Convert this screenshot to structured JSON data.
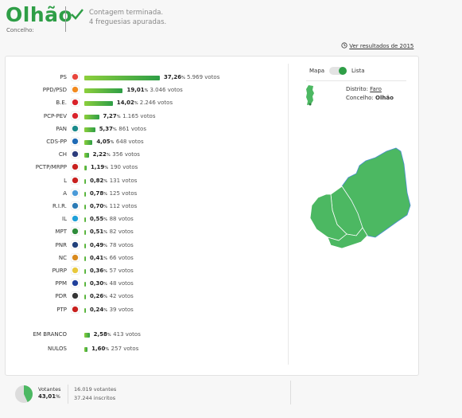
{
  "header": {
    "title": "Olhão",
    "subtitle": "Concelho:",
    "status_line1": "Contagem terminada.",
    "status_line2": "4 freguesias apuradas.",
    "history_link": "Ver resultados de 2015",
    "brand_color": "#2e9e46"
  },
  "map_panel": {
    "toggle_left": "Mapa",
    "toggle_right": "Lista",
    "distrito_label": "Distrito:",
    "distrito_value": "Faro",
    "concelho_label": "Concelho:",
    "concelho_value": "Olhão",
    "map_color": "#4cb862"
  },
  "parties": [
    {
      "name": "PS",
      "pct": "37,26",
      "votes": "5.969 votos",
      "share": 37.26,
      "logo": "ps-logo",
      "color": "#e8453c"
    },
    {
      "name": "PPD/PSD",
      "pct": "19,01",
      "votes": "3.046 votos",
      "share": 19.01,
      "logo": "psd-logo",
      "color": "#f28a1e"
    },
    {
      "name": "B.E.",
      "pct": "14,02",
      "votes": "2.246 votos",
      "share": 14.02,
      "logo": "be-logo",
      "color": "#d9222a"
    },
    {
      "name": "PCP-PEV",
      "pct": "7,27",
      "votes": "1.165 votos",
      "share": 7.27,
      "logo": "pcp-pev-logo",
      "color": "#d9222a"
    },
    {
      "name": "PAN",
      "pct": "5,37",
      "votes": "861 votos",
      "share": 5.37,
      "logo": "pan-logo",
      "color": "#1a8a8a"
    },
    {
      "name": "CDS-PP",
      "pct": "4,05",
      "votes": "648 votos",
      "share": 4.05,
      "logo": "cds-logo",
      "color": "#1f6ab5"
    },
    {
      "name": "CH",
      "pct": "2,22",
      "votes": "356 votos",
      "share": 2.22,
      "logo": "ch-logo",
      "color": "#2a3a7a"
    },
    {
      "name": "PCTP/MRPP",
      "pct": "1,19",
      "votes": "190 votos",
      "share": 1.19,
      "logo": "pctp-logo",
      "color": "#c8201e"
    },
    {
      "name": "L",
      "pct": "0,82",
      "votes": "131 votos",
      "share": 0.82,
      "logo": "livre-logo",
      "color": "#c8201e"
    },
    {
      "name": "A",
      "pct": "0,78",
      "votes": "125 votos",
      "share": 0.78,
      "logo": "alianca-logo",
      "color": "#4a9ad8"
    },
    {
      "name": "R.I.R.",
      "pct": "0,70",
      "votes": "112 votos",
      "share": 0.7,
      "logo": "rir-logo",
      "color": "#2a7ab5"
    },
    {
      "name": "IL",
      "pct": "0,55",
      "votes": "88 votos",
      "share": 0.55,
      "logo": "il-logo",
      "color": "#1fa0d8"
    },
    {
      "name": "MPT",
      "pct": "0,51",
      "votes": "82 votos",
      "share": 0.51,
      "logo": "mpt-logo",
      "color": "#2e8b3a"
    },
    {
      "name": "PNR",
      "pct": "0,49",
      "votes": "78 votos",
      "share": 0.49,
      "logo": "pnr-logo",
      "color": "#1f3f7a"
    },
    {
      "name": "NC",
      "pct": "0,41",
      "votes": "66 votos",
      "share": 0.41,
      "logo": "nc-logo",
      "color": "#d98a1e"
    },
    {
      "name": "PURP",
      "pct": "0,36",
      "votes": "57 votos",
      "share": 0.36,
      "logo": "purp-logo",
      "color": "#e8c83c"
    },
    {
      "name": "PPM",
      "pct": "0,30",
      "votes": "48 votos",
      "share": 0.3,
      "logo": "ppm-logo",
      "color": "#1f3f9a"
    },
    {
      "name": "PDR",
      "pct": "0,26",
      "votes": "42 votos",
      "share": 0.26,
      "logo": "pdr-logo",
      "color": "#333333"
    },
    {
      "name": "PTP",
      "pct": "0,24",
      "votes": "39 votos",
      "share": 0.24,
      "logo": "ptp-logo",
      "color": "#c8201e"
    }
  ],
  "other": [
    {
      "name": "EM BRANCO",
      "pct": "2,58",
      "votes": "413 votos",
      "share": 2.58
    },
    {
      "name": "NULOS",
      "pct": "1,60",
      "votes": "257 votos",
      "share": 1.6
    }
  ],
  "turnout": {
    "label": "Votantes",
    "pct": "43,01",
    "share": 43.01,
    "voters": "16.019 votantes",
    "registered": "37.244 inscritos"
  },
  "pct_symbol": "%"
}
